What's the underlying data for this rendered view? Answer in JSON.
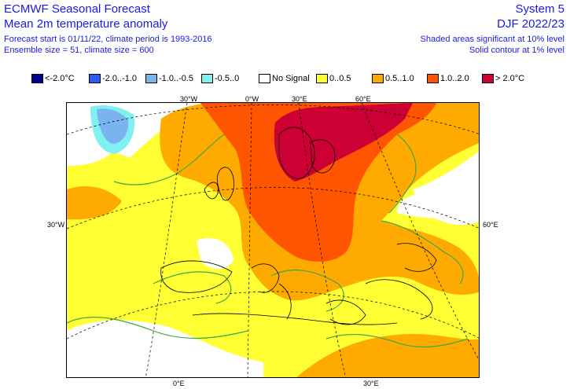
{
  "header": {
    "title": "ECMWF Seasonal Forecast",
    "subtitle": "Mean 2m temperature anomaly",
    "forecast_info": "Forecast start is 01/11/22, climate period is 1993-2016",
    "ensemble_info": "Ensemble size = 51, climate size = 600",
    "system": "System 5",
    "season": "DJF 2022/23",
    "shading_note": "Shaded areas significant at 10% level",
    "contour_note": "Solid contour at 1% level"
  },
  "legend": [
    {
      "label": "<-2.0°C",
      "color": "#00008c"
    },
    {
      "label": "-2.0..-1.0",
      "color": "#2a5cf5"
    },
    {
      "label": "-1.0..-0.5",
      "color": "#7ab4f0"
    },
    {
      "label": "-0.5..0",
      "color": "#80f0f0"
    },
    {
      "label": "No Signal",
      "color": "#ffffff"
    },
    {
      "label": "0..0.5",
      "color": "#ffff33"
    },
    {
      "label": "0.5..1.0",
      "color": "#ffaa00"
    },
    {
      "label": "1.0..2.0",
      "color": "#ff5500"
    },
    {
      "label": "> 2.0°C",
      "color": "#cc0033"
    }
  ],
  "grid_labels": {
    "top": [
      "30°W",
      "0°W",
      "30°E",
      "60°E"
    ],
    "left": "30°W",
    "right": "60°E",
    "bottom": [
      "0°E",
      "30°E"
    ]
  },
  "colors": {
    "text_blue": "#1a1ae6",
    "contour_green": "#3aa845",
    "grid": "#000000",
    "coastline": "#000000"
  }
}
